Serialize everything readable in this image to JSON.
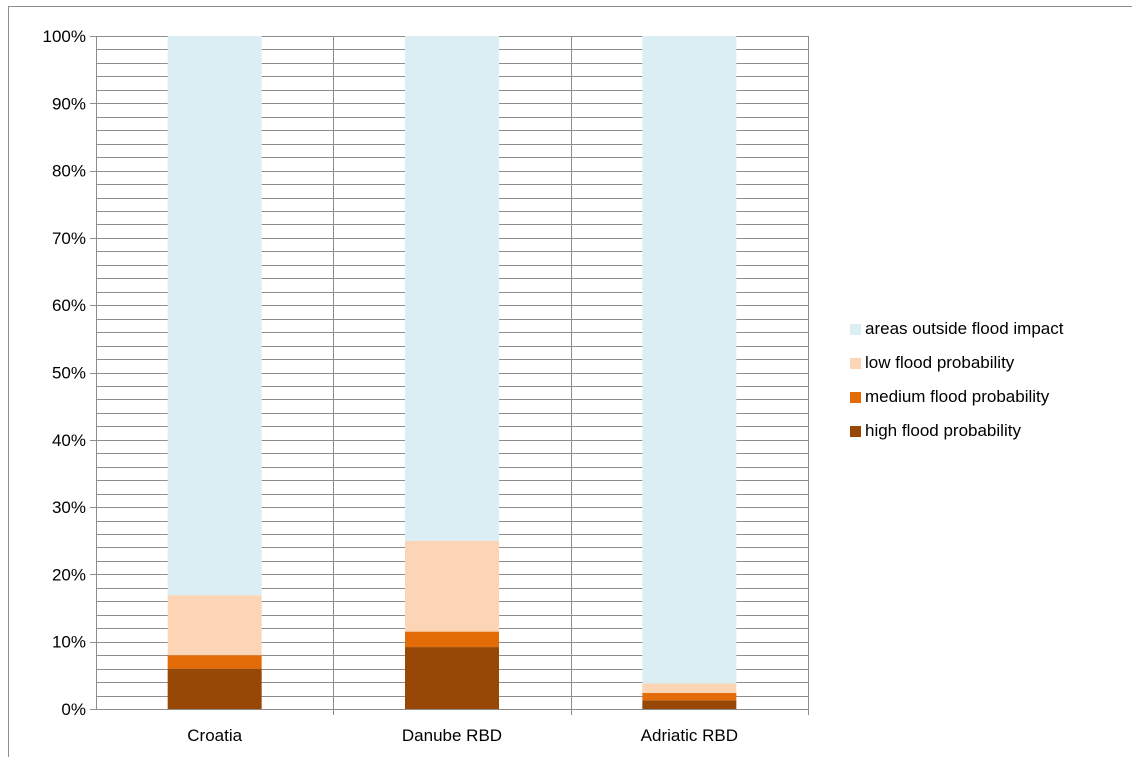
{
  "chart_data": {
    "type": "bar",
    "stacked": true,
    "percent_stacked": true,
    "categories": [
      "Croatia",
      "Danube RBD",
      "Adriatic RBD"
    ],
    "series": [
      {
        "name": "high flood probability",
        "color": "#974706",
        "values": [
          6.0,
          9.2,
          1.3
        ]
      },
      {
        "name": "medium flood probability",
        "color": "#E36C09",
        "values": [
          2.0,
          2.3,
          1.1
        ]
      },
      {
        "name": "low flood probability",
        "color": "#FBD5B5",
        "values": [
          8.9,
          13.5,
          1.4
        ]
      },
      {
        "name": "areas outside flood impact",
        "color": "#DBEEF3",
        "values": [
          83.1,
          75.0,
          96.2
        ]
      }
    ],
    "ylim": [
      0,
      100
    ],
    "y_ticks": [
      "0%",
      "10%",
      "20%",
      "30%",
      "40%",
      "50%",
      "60%",
      "70%",
      "80%",
      "90%",
      "100%"
    ],
    "grid": true,
    "legend_position": "right",
    "legend_order": [
      "areas outside flood impact",
      "low flood probability",
      "medium flood probability",
      "high flood probability"
    ]
  }
}
